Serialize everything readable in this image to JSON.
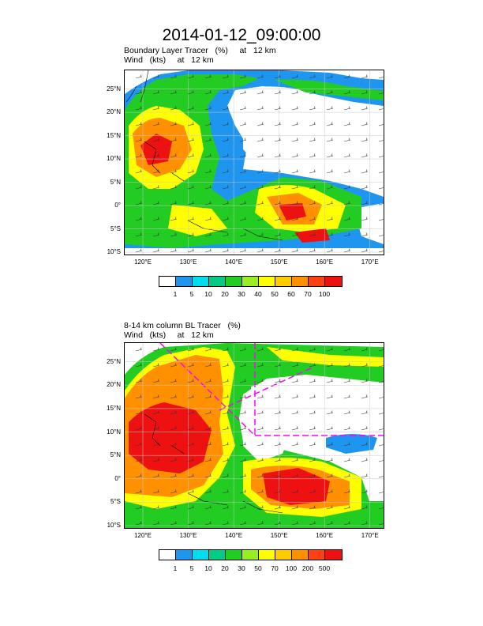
{
  "title": "2014-01-12_09:00:00",
  "axes": {
    "lat_labels": [
      "25°N",
      "20°N",
      "15°N",
      "10°N",
      "5°N",
      "0°",
      "5°S",
      "10°S"
    ],
    "lat_values": [
      25,
      20,
      15,
      10,
      5,
      0,
      -5,
      -10
    ],
    "lon_labels": [
      "120°E",
      "130°E",
      "140°E",
      "150°E",
      "160°E",
      "170°E"
    ],
    "lon_values": [
      120,
      130,
      140,
      150,
      160,
      170
    ],
    "lon_range": [
      116,
      173
    ],
    "lat_range": [
      -10.5,
      29
    ]
  },
  "panels": [
    {
      "line1": "Boundary Layer Tracer   (%)     at   12 km",
      "line2": "Wind   (kts)     at   12 km",
      "legend_labels": [
        "1",
        "5",
        "10",
        "20",
        "30",
        "40",
        "50",
        "60",
        "70",
        "100"
      ],
      "legend_colors": [
        "#ffffff",
        "#1e96f0",
        "#00ddee",
        "#00cc88",
        "#22cc22",
        "#99ee22",
        "#ffff00",
        "#ffcc00",
        "#ff9000",
        "#ff4010",
        "#ee1111"
      ]
    },
    {
      "line1": "8-14 km column BL Tracer   (%)",
      "line2": "Wind   (kts)     at   12 km",
      "legend_labels": [
        "1",
        "5",
        "10",
        "20",
        "30",
        "50",
        "70",
        "100",
        "200",
        "500"
      ],
      "legend_colors": [
        "#ffffff",
        "#1e96f0",
        "#00ddee",
        "#00cc88",
        "#22cc22",
        "#99ee22",
        "#ffff00",
        "#ffcc00",
        "#ff9000",
        "#ff4010",
        "#ee1111"
      ]
    }
  ]
}
